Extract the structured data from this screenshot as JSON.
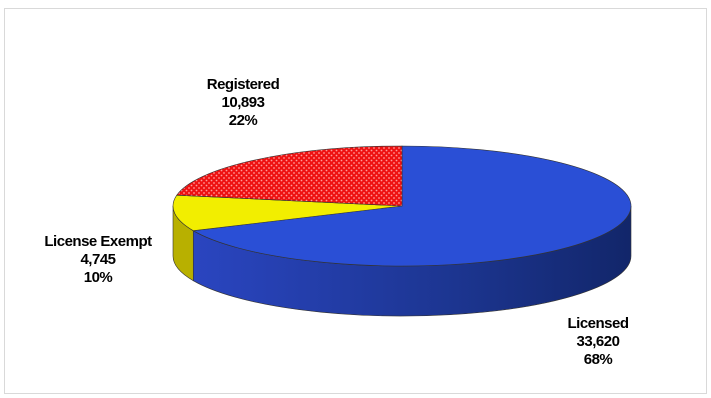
{
  "chart_data": {
    "type": "pie",
    "style": "3d",
    "title": "",
    "legend": "none",
    "slices": [
      {
        "name": "Licensed",
        "value": 33620,
        "percent": "68%",
        "value_label": "33,620",
        "color": "#2a4fd6",
        "side_color": "#16307f"
      },
      {
        "name": "License Exempt",
        "value": 4745,
        "percent": "10%",
        "value_label": "4,745",
        "color": "#f2ee00",
        "side_color": "#b8b000"
      },
      {
        "name": "Registered",
        "value": 10893,
        "percent": "22%",
        "value_label": "10,893",
        "color": "#ee1111",
        "side_color": "#9e0000",
        "pattern": "dotted"
      }
    ]
  }
}
